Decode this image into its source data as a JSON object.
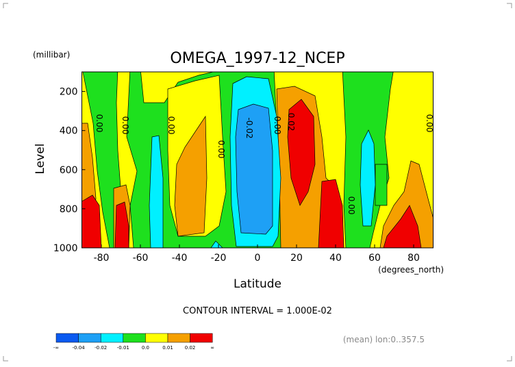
{
  "chart_data": {
    "type": "contour",
    "title": "OMEGA_1997-12_NCEP",
    "y_unit": "(millibar)",
    "ylabel": "Level",
    "xlabel": "Latitude",
    "x_unit": "(degrees_north)",
    "xlim": [
      -90,
      90
    ],
    "xticks": [
      -80,
      -60,
      -40,
      -20,
      0,
      20,
      40,
      60,
      80
    ],
    "ylim": [
      1000,
      100
    ],
    "yticks": [
      200,
      400,
      600,
      800,
      1000
    ],
    "contour_labels": [
      "0.00",
      "0.00",
      "0.00",
      "0.00",
      "-0.02",
      "0.00",
      "0.02",
      "0.00",
      "0.00"
    ],
    "contour_interval": "CONTOUR INTERVAL = 1.000E-02",
    "footnote": "(mean) lon:0..357.5",
    "colorbar_ticks": [
      "-∞",
      -0.04,
      -0.02,
      -0.01,
      {
        "value": 0,
        "label": "0.0"
      },
      0.01,
      0.02,
      "∞"
    ],
    "colors": [
      "#0a5af0",
      "#1ea0f5",
      "#00f0ff",
      "#1ee01e",
      "#ffff00",
      "#f5a000",
      "#f00000"
    ]
  }
}
